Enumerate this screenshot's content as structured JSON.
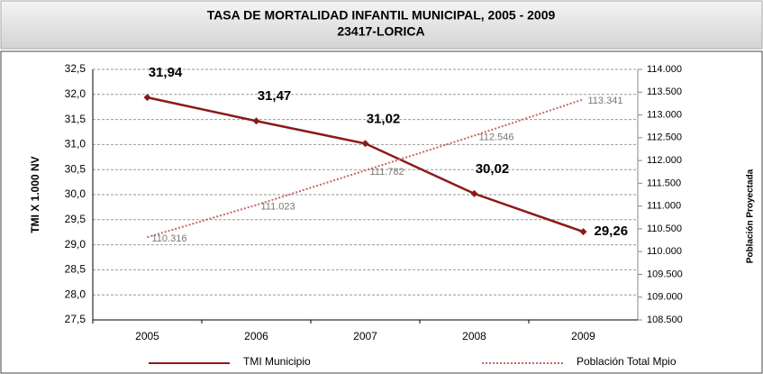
{
  "chart_data": {
    "type": "line",
    "title": "TASA DE MORTALIDAD INFANTIL MUNICIPAL, 2005 - 2009",
    "subtitle": "23417-LORICA",
    "y_label": "TMI X 1.000 NV",
    "y2_label": "Población Proyectada",
    "categories": [
      "2005",
      "2006",
      "2007",
      "2008",
      "2009"
    ],
    "series": [
      {
        "name": "TMI Municipio",
        "color": "#8b1a1a",
        "values": [
          31.94,
          31.47,
          31.02,
          30.02,
          29.26
        ],
        "value_labels": [
          "31,94",
          "31,47",
          "31,02",
          "30,02",
          "29,26"
        ]
      },
      {
        "name": "Población Total  Mpio",
        "color": "#c86464",
        "axis": "y2",
        "dashed": true,
        "values": [
          110316,
          111023,
          111782,
          112546,
          113341
        ],
        "value_labels": [
          "110.316",
          "111.023",
          "111.782",
          "112.546",
          "113.341"
        ]
      }
    ],
    "ylim": [
      27.5,
      32.5
    ],
    "yticks": [
      {
        "value": 27.5,
        "label": "27,5"
      },
      {
        "value": 28,
        "label": "28,0"
      },
      {
        "value": 28.5,
        "label": "28,5"
      },
      {
        "value": 29,
        "label": "29,0"
      },
      {
        "value": 29.5,
        "label": "29,5"
      },
      {
        "value": 30,
        "label": "30,0"
      },
      {
        "value": 30.5,
        "label": "30,5"
      },
      {
        "value": 31,
        "label": "31,0"
      },
      {
        "value": 31.5,
        "label": "31,5"
      },
      {
        "value": 32,
        "label": "32,0"
      },
      {
        "value": 32.5,
        "label": "32,5"
      }
    ],
    "y2lim": [
      108500,
      114000
    ],
    "y2ticks": [
      {
        "value": 108500,
        "label": "108.500"
      },
      {
        "value": 109000,
        "label": "109.000"
      },
      {
        "value": 109500,
        "label": "109.500"
      },
      {
        "value": 110000,
        "label": "110.000"
      },
      {
        "value": 110500,
        "label": "110.500"
      },
      {
        "value": 111000,
        "label": "111.000"
      },
      {
        "value": 111500,
        "label": "111.500"
      },
      {
        "value": 112000,
        "label": "112.000"
      },
      {
        "value": 112500,
        "label": "112.500"
      },
      {
        "value": 113000,
        "label": "113.000"
      },
      {
        "value": 113500,
        "label": "113.500"
      },
      {
        "value": 114000,
        "label": "114.000"
      }
    ],
    "grid": true,
    "legend": "bottom"
  }
}
